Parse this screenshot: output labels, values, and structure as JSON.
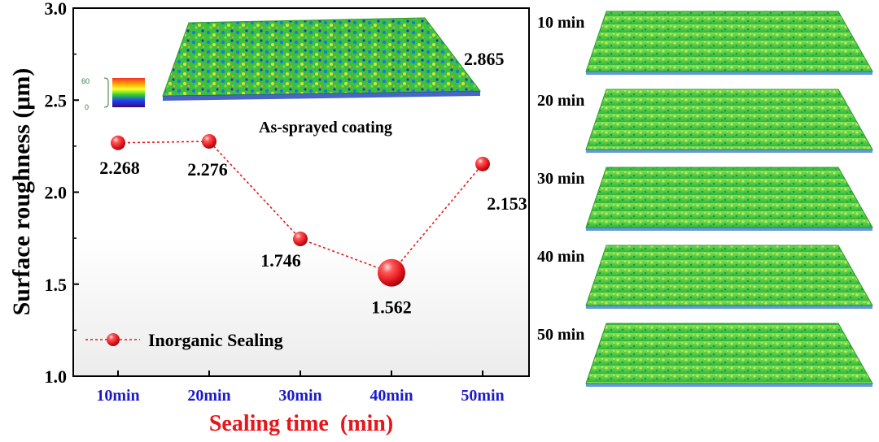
{
  "chart_data": {
    "type": "line",
    "title": "",
    "xlabel": "Sealing time  (min)",
    "ylabel": "Surface roughness (μm)",
    "categories": [
      "10min",
      "20min",
      "30min",
      "40min",
      "50min"
    ],
    "ylim": [
      1.0,
      3.0
    ],
    "yticks": [
      "1.0",
      "1.5",
      "2.0",
      "2.5",
      "3.0"
    ],
    "series": [
      {
        "name": "Inorganic Sealing",
        "values": [
          2.268,
          2.276,
          1.746,
          1.562,
          2.153
        ],
        "labels": [
          "2.268",
          "2.276",
          "1.746",
          "1.562",
          "2.153"
        ],
        "color": "#e8151b",
        "line_style": "dotted",
        "highlight_index": 3
      }
    ],
    "reference": {
      "label": "As-sprayed coating",
      "value_label": "2.865",
      "value": 2.865
    },
    "legend_position": "bottom-left",
    "grid": false
  },
  "inset": {
    "caption": "As-sprayed coating",
    "colorbar_max": "60",
    "colorbar_min": "0"
  },
  "side_panels": [
    {
      "label": "10 min"
    },
    {
      "label": "20 min"
    },
    {
      "label": "30 min"
    },
    {
      "label": "40 min"
    },
    {
      "label": "50 min"
    }
  ],
  "colors": {
    "marker": "#e8151b",
    "xtick": "#1a1ac8",
    "xlabel": "#e8151b",
    "surface_base": "#3cc83c"
  }
}
